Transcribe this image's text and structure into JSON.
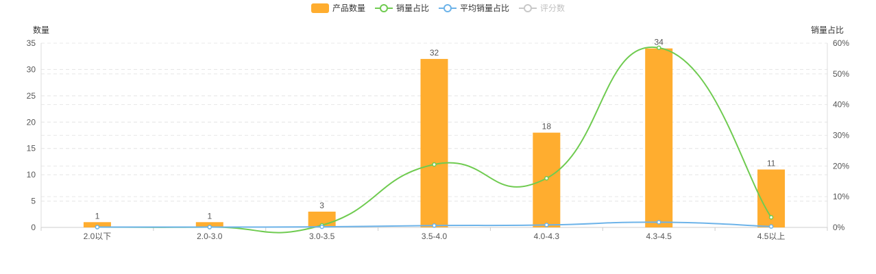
{
  "legend": {
    "items": [
      {
        "label": "产品数量",
        "kind": "bar",
        "color": "#FFAD2F",
        "disabled": false
      },
      {
        "label": "销量占比",
        "kind": "line",
        "color": "#6FCB50",
        "disabled": false
      },
      {
        "label": "平均销量占比",
        "kind": "line",
        "color": "#6CB3E9",
        "disabled": false
      },
      {
        "label": "评分数",
        "kind": "line",
        "color": "#C8C8C8",
        "disabled": true
      }
    ]
  },
  "chart_data": {
    "type": "bar",
    "categories": [
      "2.0以下",
      "2.0-3.0",
      "3.0-3.5",
      "3.5-4.0",
      "4.0-4.3",
      "4.3-4.5",
      "4.5以上"
    ],
    "series": [
      {
        "name": "产品数量",
        "type": "bar",
        "axis": "left",
        "values": [
          1,
          1,
          3,
          32,
          18,
          34,
          11
        ],
        "color": "#FFAD2F"
      },
      {
        "name": "销量占比",
        "type": "line",
        "axis": "right",
        "values": [
          0.1,
          0.1,
          0.7,
          20.5,
          16.0,
          58.5,
          3.3
        ],
        "color": "#6FCB50"
      },
      {
        "name": "平均销量占比",
        "type": "line",
        "axis": "right",
        "values": [
          0.1,
          0.1,
          0.2,
          0.6,
          0.8,
          1.7,
          0.3
        ],
        "color": "#6CB3E9"
      }
    ],
    "left_axis": {
      "label": "数量",
      "ylim": [
        0,
        35
      ],
      "ticks": [
        "0",
        "5",
        "10",
        "15",
        "20",
        "25",
        "30",
        "35"
      ]
    },
    "right_axis": {
      "label": "销量占比",
      "ylim": [
        0,
        60
      ],
      "ticks": [
        "0%",
        "10%",
        "20%",
        "30%",
        "40%",
        "50%",
        "60%"
      ]
    },
    "grid": true,
    "legend_position": "top-center"
  }
}
